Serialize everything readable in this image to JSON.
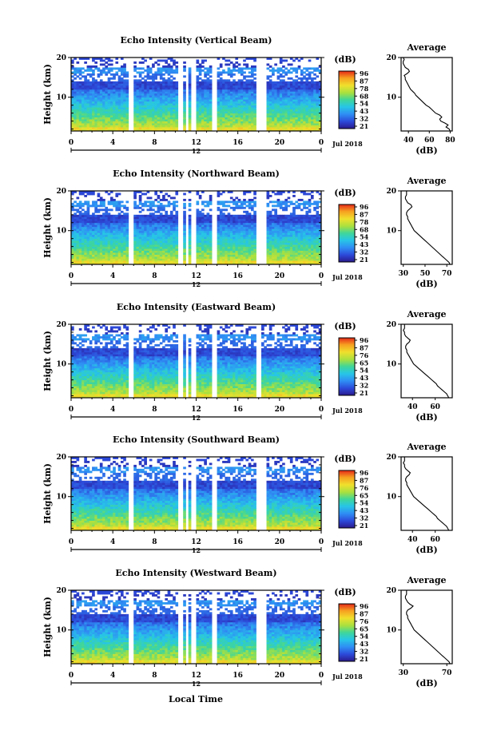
{
  "xlabel": "Local Time",
  "chart_data": [
    {
      "type": "heatmap",
      "title": "Echo Intensity (Vertical Beam)",
      "ylabel": "Height (km)",
      "xticks": [
        "0",
        "4",
        "8",
        "12",
        "16",
        "20",
        "0"
      ],
      "xlim": [
        0,
        24
      ],
      "yticks": [
        "10",
        "20"
      ],
      "ylim": [
        1.5,
        20
      ],
      "date_label": "Jul 2018",
      "date_tick": "12",
      "data_gaps_hours": [
        [
          5.7,
          5.9
        ],
        [
          10.4,
          10.6
        ],
        [
          11.0,
          11.2
        ],
        [
          11.6,
          11.8
        ],
        [
          13.7,
          13.9
        ],
        [
          17.8,
          18.6
        ]
      ],
      "colorbar": {
        "unit": "(dB)",
        "ticks": [
          "96",
          "87",
          "78",
          "68",
          "54",
          "43",
          "32",
          "21"
        ]
      },
      "profile": {
        "title": "Average",
        "xlabel": "(dB)",
        "xticks": [
          "40",
          "60",
          "80"
        ],
        "xlim": [
          33,
          82
        ],
        "yticks": [
          "10",
          "20"
        ],
        "heights": [
          1.5,
          2.0,
          2.5,
          3.0,
          3.5,
          4.0,
          4.5,
          5.0,
          5.5,
          6.0,
          6.5,
          7.0,
          7.5,
          8.0,
          8.5,
          9.0,
          9.5,
          10.0,
          10.5,
          11.0,
          11.5,
          12.0,
          12.5,
          13.0,
          13.5,
          14.0,
          14.5,
          15.0,
          15.5,
          16.0,
          16.5,
          17.0,
          17.5,
          18.0,
          18.5,
          19.0,
          19.5,
          20.0
        ],
        "values": [
          80,
          79,
          76,
          78,
          75,
          71,
          70,
          72,
          70,
          66,
          64,
          62,
          60,
          57,
          55,
          53,
          51,
          49,
          47,
          46,
          44,
          42,
          41,
          40,
          39,
          38,
          37,
          37,
          36,
          39,
          41,
          40,
          37,
          36,
          35,
          35,
          36,
          35
        ]
      }
    },
    {
      "type": "heatmap",
      "title": "Echo Intensity (Northward Beam)",
      "ylabel": "Height (km)",
      "xticks": [
        "0",
        "4",
        "8",
        "12",
        "16",
        "20",
        "0"
      ],
      "xlim": [
        0,
        24
      ],
      "yticks": [
        "10",
        "20"
      ],
      "ylim": [
        1.5,
        20
      ],
      "date_label": "Jul 2018",
      "date_tick": "12",
      "data_gaps_hours": [
        [
          5.7,
          5.9
        ],
        [
          10.4,
          10.6
        ],
        [
          11.0,
          11.2
        ],
        [
          11.6,
          11.8
        ],
        [
          13.7,
          13.9
        ],
        [
          17.8,
          18.6
        ]
      ],
      "colorbar": {
        "unit": "(dB)",
        "ticks": [
          "96",
          "87",
          "78",
          "68",
          "54",
          "43",
          "32",
          "21"
        ]
      },
      "profile": {
        "title": "Average",
        "xlabel": "(dB)",
        "xticks": [
          "30",
          "50",
          "70"
        ],
        "xlim": [
          28,
          75
        ],
        "yticks": [
          "10",
          "20"
        ],
        "heights": [
          1.5,
          2.0,
          2.5,
          3.0,
          3.5,
          4.0,
          4.5,
          5.0,
          5.5,
          6.0,
          6.5,
          7.0,
          7.5,
          8.0,
          8.5,
          9.0,
          9.5,
          10.0,
          10.5,
          11.0,
          11.5,
          12.0,
          12.5,
          13.0,
          13.5,
          14.0,
          14.5,
          15.0,
          15.5,
          16.0,
          16.5,
          17.0,
          17.5,
          18.0,
          18.5,
          19.0,
          19.5,
          20.0
        ],
        "values": [
          73,
          72,
          70,
          68,
          66,
          64,
          62,
          60,
          58,
          56,
          54,
          52,
          50,
          48,
          46,
          44,
          42,
          40,
          39,
          38,
          37,
          36,
          35,
          34,
          34,
          33,
          33,
          34,
          36,
          38,
          37,
          34,
          33,
          32,
          32,
          33,
          33,
          33
        ]
      }
    },
    {
      "type": "heatmap",
      "title": "Echo Intensity (Eastward Beam)",
      "ylabel": "Height (km)",
      "xticks": [
        "0",
        "4",
        "8",
        "12",
        "16",
        "20",
        "0"
      ],
      "xlim": [
        0,
        24
      ],
      "yticks": [
        "10",
        "20"
      ],
      "ylim": [
        1.5,
        20
      ],
      "date_label": "Jul 2018",
      "date_tick": "12",
      "data_gaps_hours": [
        [
          5.7,
          5.9
        ],
        [
          10.4,
          10.6
        ],
        [
          11.0,
          11.2
        ],
        [
          11.6,
          11.8
        ],
        [
          13.7,
          13.9
        ],
        [
          17.8,
          18.2
        ]
      ],
      "colorbar": {
        "unit": "(dB)",
        "ticks": [
          "96",
          "87",
          "76",
          "65",
          "54",
          "43",
          "32",
          "21"
        ]
      },
      "profile": {
        "title": "Average",
        "xlabel": "(dB)",
        "xticks": [
          "40",
          "60"
        ],
        "xlim": [
          30,
          75
        ],
        "yticks": [
          "10",
          "20"
        ],
        "heights": [
          1.5,
          2.0,
          2.5,
          3.0,
          3.5,
          4.0,
          4.5,
          5.0,
          5.5,
          6.0,
          6.5,
          7.0,
          7.5,
          8.0,
          8.5,
          9.0,
          9.5,
          10.0,
          10.5,
          11.0,
          11.5,
          12.0,
          12.5,
          13.0,
          13.5,
          14.0,
          14.5,
          15.0,
          15.5,
          16.0,
          16.5,
          17.0,
          17.5,
          18.0,
          18.5,
          19.0,
          19.5,
          20.0
        ],
        "values": [
          72,
          71,
          70,
          68,
          66,
          64,
          62,
          61,
          59,
          57,
          55,
          53,
          51,
          49,
          47,
          45,
          43,
          41,
          40,
          39,
          38,
          37,
          36,
          35,
          35,
          34,
          34,
          35,
          37,
          38,
          36,
          34,
          33,
          33,
          32,
          33,
          33,
          33
        ]
      }
    },
    {
      "type": "heatmap",
      "title": "Echo Intensity (Southward Beam)",
      "ylabel": "Height (km)",
      "xticks": [
        "0",
        "4",
        "8",
        "12",
        "16",
        "20",
        "0"
      ],
      "xlim": [
        0,
        24
      ],
      "yticks": [
        "10",
        "20"
      ],
      "ylim": [
        1.5,
        20
      ],
      "date_label": "Jul 2018",
      "date_tick": "12",
      "data_gaps_hours": [
        [
          5.7,
          5.9
        ],
        [
          10.4,
          10.6
        ],
        [
          11.0,
          11.2
        ],
        [
          11.6,
          11.8
        ],
        [
          13.7,
          13.9
        ],
        [
          17.8,
          18.6
        ]
      ],
      "colorbar": {
        "unit": "(dB)",
        "ticks": [
          "96",
          "87",
          "76",
          "65",
          "54",
          "43",
          "32",
          "21"
        ]
      },
      "profile": {
        "title": "Average",
        "xlabel": "(dB)",
        "xticks": [
          "40",
          "60"
        ],
        "xlim": [
          30,
          75
        ],
        "yticks": [
          "10",
          "20"
        ],
        "heights": [
          1.5,
          2.0,
          2.5,
          3.0,
          3.5,
          4.0,
          4.5,
          5.0,
          5.5,
          6.0,
          6.5,
          7.0,
          7.5,
          8.0,
          8.5,
          9.0,
          9.5,
          10.0,
          10.5,
          11.0,
          11.5,
          12.0,
          12.5,
          13.0,
          13.5,
          14.0,
          14.5,
          15.0,
          15.5,
          16.0,
          16.5,
          17.0,
          17.5,
          18.0,
          18.5,
          19.0,
          19.5,
          20.0
        ],
        "values": [
          72,
          71,
          70,
          68,
          66,
          64,
          62,
          61,
          59,
          57,
          55,
          53,
          51,
          49,
          47,
          45,
          43,
          41,
          40,
          39,
          38,
          37,
          36,
          35,
          35,
          34,
          34,
          35,
          37,
          38,
          36,
          34,
          33,
          33,
          32,
          33,
          33,
          33
        ]
      }
    },
    {
      "type": "heatmap",
      "title": "Echo Intensity (Westward Beam)",
      "ylabel": "Height (km)",
      "xticks": [
        "0",
        "4",
        "8",
        "12",
        "16",
        "20",
        "0"
      ],
      "xlim": [
        0,
        24
      ],
      "yticks": [
        "10",
        "20"
      ],
      "ylim": [
        1.5,
        20
      ],
      "date_label": "Jul 2018",
      "date_tick": "12",
      "data_gaps_hours": [
        [
          5.7,
          5.9
        ],
        [
          10.4,
          10.6
        ],
        [
          11.0,
          11.2
        ],
        [
          11.6,
          11.8
        ],
        [
          13.7,
          13.9
        ],
        [
          17.8,
          18.6
        ]
      ],
      "colorbar": {
        "unit": "(dB)",
        "ticks": [
          "96",
          "87",
          "76",
          "65",
          "54",
          "43",
          "32",
          "21"
        ]
      },
      "profile": {
        "title": "Average",
        "xlabel": "(dB)",
        "xticks": [
          "30",
          "70"
        ],
        "xlim": [
          28,
          75
        ],
        "yticks": [
          "10",
          "20"
        ],
        "heights": [
          1.5,
          2.0,
          2.5,
          3.0,
          3.5,
          4.0,
          4.5,
          5.0,
          5.5,
          6.0,
          6.5,
          7.0,
          7.5,
          8.0,
          8.5,
          9.0,
          9.5,
          10.0,
          10.5,
          11.0,
          11.5,
          12.0,
          12.5,
          13.0,
          13.5,
          14.0,
          14.5,
          15.0,
          15.5,
          16.0,
          16.5,
          17.0,
          17.5,
          18.0,
          18.5,
          19.0,
          19.5,
          20.0
        ],
        "values": [
          73,
          72,
          70,
          68,
          66,
          64,
          62,
          60,
          58,
          56,
          54,
          52,
          50,
          48,
          46,
          44,
          42,
          40,
          39,
          38,
          37,
          36,
          35,
          34,
          34,
          33,
          33,
          34,
          37,
          39,
          36,
          34,
          33,
          32,
          32,
          33,
          33,
          33
        ]
      }
    }
  ]
}
